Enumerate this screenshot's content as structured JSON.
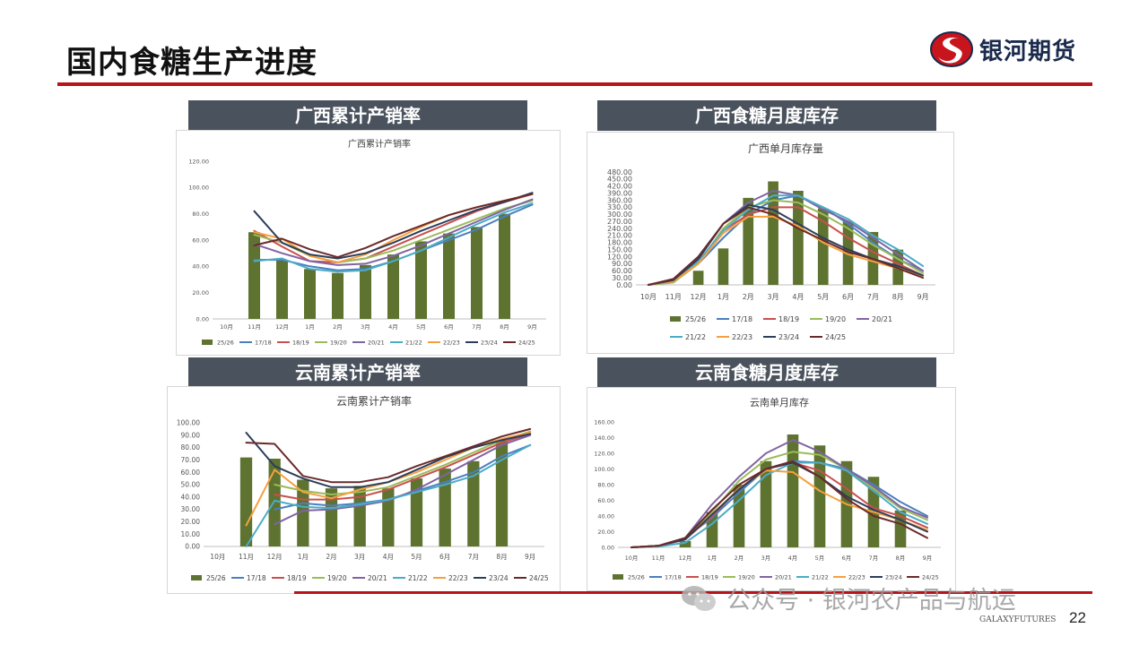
{
  "slide": {
    "title": "国内食糖生产进度",
    "brand": "银河期货",
    "footer_brand": "GALAXYFUTURES",
    "page_number": "22",
    "watermark": "公众号 · 银河农产品与航运",
    "colors": {
      "accent_red": "#b8121a",
      "header_gray": "#4a525d",
      "bar_green": "#5e7330"
    }
  },
  "panels": [
    {
      "id": "gx_rate",
      "header": "广西累计产销率"
    },
    {
      "id": "gx_stock",
      "header": "广西食糖月度库存"
    },
    {
      "id": "yn_rate",
      "header": "云南累计产销率"
    },
    {
      "id": "yn_stock",
      "header": "云南食糖月度库存"
    }
  ],
  "legend_colors": {
    "25/26": "#5e7330",
    "17/18": "#4a7fbf",
    "18/19": "#c94f4f",
    "19/20": "#9bbb59",
    "20/21": "#8064a2",
    "21/22": "#4bacc6",
    "22/23": "#f5a03f",
    "23/24": "#2c3e5a",
    "24/25": "#6b2a2a"
  },
  "chart_data": [
    {
      "id": "gx_rate",
      "type": "bar",
      "title": "广西累计产销率",
      "categories": [
        "10月",
        "11月",
        "12月",
        "1月",
        "2月",
        "3月",
        "4月",
        "5月",
        "6月",
        "7月",
        "8月",
        "9月"
      ],
      "ylim": [
        0,
        120
      ],
      "yticks": [
        "0.00",
        "20.00",
        "40.00",
        "60.00",
        "80.00",
        "100.00",
        "120.00"
      ],
      "legend_position": "bottom",
      "series": [
        {
          "name": "25/26",
          "kind": "bar",
          "values": [
            null,
            66,
            45,
            38,
            35,
            41,
            49,
            59,
            65,
            70,
            80,
            null
          ]
        },
        {
          "name": "17/18",
          "kind": "line",
          "values": [
            null,
            45,
            45,
            40,
            37,
            38,
            44,
            52,
            60,
            68,
            78,
            87
          ]
        },
        {
          "name": "18/19",
          "kind": "line",
          "values": [
            null,
            67,
            55,
            44,
            43,
            46,
            55,
            64,
            73,
            82,
            89,
            95
          ]
        },
        {
          "name": "19/20",
          "kind": "line",
          "values": [
            null,
            64,
            58,
            48,
            43,
            46,
            52,
            60,
            68,
            76,
            84,
            90
          ]
        },
        {
          "name": "20/21",
          "kind": "line",
          "values": [
            null,
            57,
            50,
            44,
            41,
            42,
            48,
            56,
            65,
            74,
            83,
            91
          ]
        },
        {
          "name": "21/22",
          "kind": "line",
          "values": [
            null,
            44,
            46,
            38,
            36,
            37,
            44,
            52,
            62,
            72,
            81,
            88
          ]
        },
        {
          "name": "22/23",
          "kind": "line",
          "values": [
            null,
            66,
            61,
            48,
            43,
            49,
            60,
            70,
            79,
            85,
            90,
            95
          ]
        },
        {
          "name": "23/24",
          "kind": "line",
          "values": [
            null,
            82,
            58,
            49,
            46,
            50,
            58,
            67,
            75,
            83,
            89,
            96
          ]
        },
        {
          "name": "24/25",
          "kind": "line",
          "values": [
            null,
            56,
            61,
            53,
            47,
            54,
            63,
            71,
            79,
            85,
            90,
            95
          ]
        }
      ]
    },
    {
      "id": "gx_stock",
      "type": "bar",
      "title": "广西单月库存量",
      "categories": [
        "10月",
        "11月",
        "12月",
        "1月",
        "2月",
        "3月",
        "4月",
        "5月",
        "6月",
        "7月",
        "8月",
        "9月"
      ],
      "ylim": [
        0,
        480
      ],
      "yticks": [
        "0.00",
        "30.00",
        "60.00",
        "90.00",
        "120.00",
        "150.00",
        "180.00",
        "210.00",
        "240.00",
        "270.00",
        "300.00",
        "330.00",
        "360.00",
        "390.00",
        "420.00",
        "450.00",
        "480.00"
      ],
      "legend_position": "bottom",
      "series": [
        {
          "name": "25/26",
          "kind": "bar",
          "values": [
            null,
            null,
            60,
            155,
            370,
            440,
            400,
            325,
            270,
            225,
            150,
            null
          ]
        },
        {
          "name": "17/18",
          "kind": "line",
          "values": [
            0,
            15,
            90,
            200,
            300,
            360,
            380,
            330,
            260,
            180,
            110,
            60
          ]
        },
        {
          "name": "18/19",
          "kind": "line",
          "values": [
            0,
            15,
            100,
            230,
            300,
            330,
            330,
            270,
            200,
            140,
            90,
            40
          ]
        },
        {
          "name": "19/20",
          "kind": "line",
          "values": [
            0,
            10,
            90,
            240,
            330,
            360,
            350,
            300,
            240,
            170,
            110,
            50
          ]
        },
        {
          "name": "20/21",
          "kind": "line",
          "values": [
            0,
            20,
            110,
            260,
            350,
            400,
            380,
            320,
            270,
            200,
            130,
            60
          ]
        },
        {
          "name": "21/22",
          "kind": "line",
          "values": [
            0,
            15,
            100,
            230,
            320,
            380,
            380,
            330,
            280,
            210,
            150,
            80
          ]
        },
        {
          "name": "22/23",
          "kind": "line",
          "values": [
            0,
            15,
            90,
            220,
            290,
            290,
            250,
            180,
            130,
            100,
            70,
            40
          ]
        },
        {
          "name": "23/24",
          "kind": "line",
          "values": [
            0,
            20,
            110,
            260,
            340,
            320,
            260,
            200,
            150,
            110,
            80,
            40
          ]
        },
        {
          "name": "24/25",
          "kind": "line",
          "values": [
            0,
            25,
            120,
            260,
            330,
            300,
            240,
            190,
            140,
            110,
            70,
            30
          ]
        }
      ]
    },
    {
      "id": "yn_rate",
      "type": "bar",
      "title": "云南累计产销率",
      "categories": [
        "10月",
        "11月",
        "12月",
        "1月",
        "2月",
        "3月",
        "4月",
        "5月",
        "6月",
        "7月",
        "8月",
        "9月"
      ],
      "ylim": [
        0,
        100
      ],
      "yticks": [
        "0.00",
        "10.00",
        "20.00",
        "30.00",
        "40.00",
        "50.00",
        "60.00",
        "70.00",
        "80.00",
        "90.00",
        "100.00"
      ],
      "legend_position": "bottom",
      "series": [
        {
          "name": "25/26",
          "kind": "bar",
          "values": [
            null,
            72,
            71,
            54,
            47,
            49,
            47,
            55,
            63,
            69,
            86,
            null
          ]
        },
        {
          "name": "17/18",
          "kind": "line",
          "values": [
            null,
            null,
            30,
            35,
            33,
            35,
            38,
            45,
            52,
            60,
            73,
            82
          ]
        },
        {
          "name": "18/19",
          "kind": "line",
          "values": [
            null,
            null,
            42,
            38,
            38,
            40,
            46,
            55,
            64,
            74,
            84,
            91
          ]
        },
        {
          "name": "19/20",
          "kind": "line",
          "values": [
            null,
            null,
            50,
            45,
            42,
            44,
            48,
            57,
            66,
            76,
            86,
            93
          ]
        },
        {
          "name": "20/21",
          "kind": "line",
          "values": [
            null,
            null,
            18,
            29,
            30,
            33,
            37,
            46,
            58,
            70,
            82,
            90
          ]
        },
        {
          "name": "21/22",
          "kind": "line",
          "values": [
            null,
            0,
            37,
            32,
            31,
            34,
            38,
            44,
            50,
            57,
            70,
            82
          ]
        },
        {
          "name": "22/23",
          "kind": "line",
          "values": [
            null,
            17,
            62,
            44,
            39,
            46,
            52,
            60,
            70,
            80,
            87,
            92
          ]
        },
        {
          "name": "23/24",
          "kind": "line",
          "values": [
            null,
            92,
            65,
            55,
            48,
            48,
            52,
            62,
            72,
            80,
            86,
            91
          ]
        },
        {
          "name": "24/25",
          "kind": "line",
          "values": [
            null,
            84,
            83,
            57,
            52,
            52,
            56,
            65,
            73,
            81,
            89,
            95
          ]
        }
      ]
    },
    {
      "id": "yn_stock",
      "type": "bar",
      "title": "云南单月库存",
      "categories": [
        "10月",
        "11月",
        "12月",
        "1月",
        "2月",
        "3月",
        "4月",
        "5月",
        "6月",
        "7月",
        "8月",
        "9月"
      ],
      "ylim": [
        0,
        160
      ],
      "yticks": [
        "0.00",
        "20.00",
        "40.00",
        "60.00",
        "80.00",
        "100.00",
        "120.00",
        "140.00",
        "160.00"
      ],
      "legend_position": "bottom",
      "series": [
        {
          "name": "25/26",
          "kind": "bar",
          "values": [
            null,
            null,
            8,
            45,
            80,
            110,
            144,
            130,
            110,
            90,
            47,
            null
          ]
        },
        {
          "name": "17/18",
          "kind": "line",
          "values": [
            0,
            2,
            12,
            38,
            70,
            100,
            110,
            108,
            100,
            80,
            58,
            40
          ]
        },
        {
          "name": "18/19",
          "kind": "line",
          "values": [
            0,
            2,
            10,
            40,
            75,
            100,
            108,
            98,
            75,
            50,
            40,
            25
          ]
        },
        {
          "name": "19/20",
          "kind": "line",
          "values": [
            0,
            2,
            10,
            45,
            85,
            112,
            122,
            118,
            100,
            75,
            50,
            35
          ]
        },
        {
          "name": "20/21",
          "kind": "line",
          "values": [
            0,
            2,
            12,
            55,
            90,
            120,
            137,
            122,
            100,
            78,
            52,
            38
          ]
        },
        {
          "name": "21/22",
          "kind": "line",
          "values": [
            0,
            1,
            6,
            30,
            60,
            92,
            108,
            108,
            98,
            72,
            45,
            30
          ]
        },
        {
          "name": "22/23",
          "kind": "line",
          "values": [
            0,
            2,
            10,
            42,
            75,
            98,
            96,
            72,
            55,
            45,
            35,
            22
          ]
        },
        {
          "name": "23/24",
          "kind": "line",
          "values": [
            0,
            2,
            10,
            42,
            74,
            100,
            108,
            90,
            65,
            48,
            35,
            20
          ]
        },
        {
          "name": "24/25",
          "kind": "line",
          "values": [
            0,
            2,
            12,
            48,
            80,
            100,
            110,
            90,
            62,
            40,
            30,
            12
          ]
        }
      ]
    }
  ]
}
